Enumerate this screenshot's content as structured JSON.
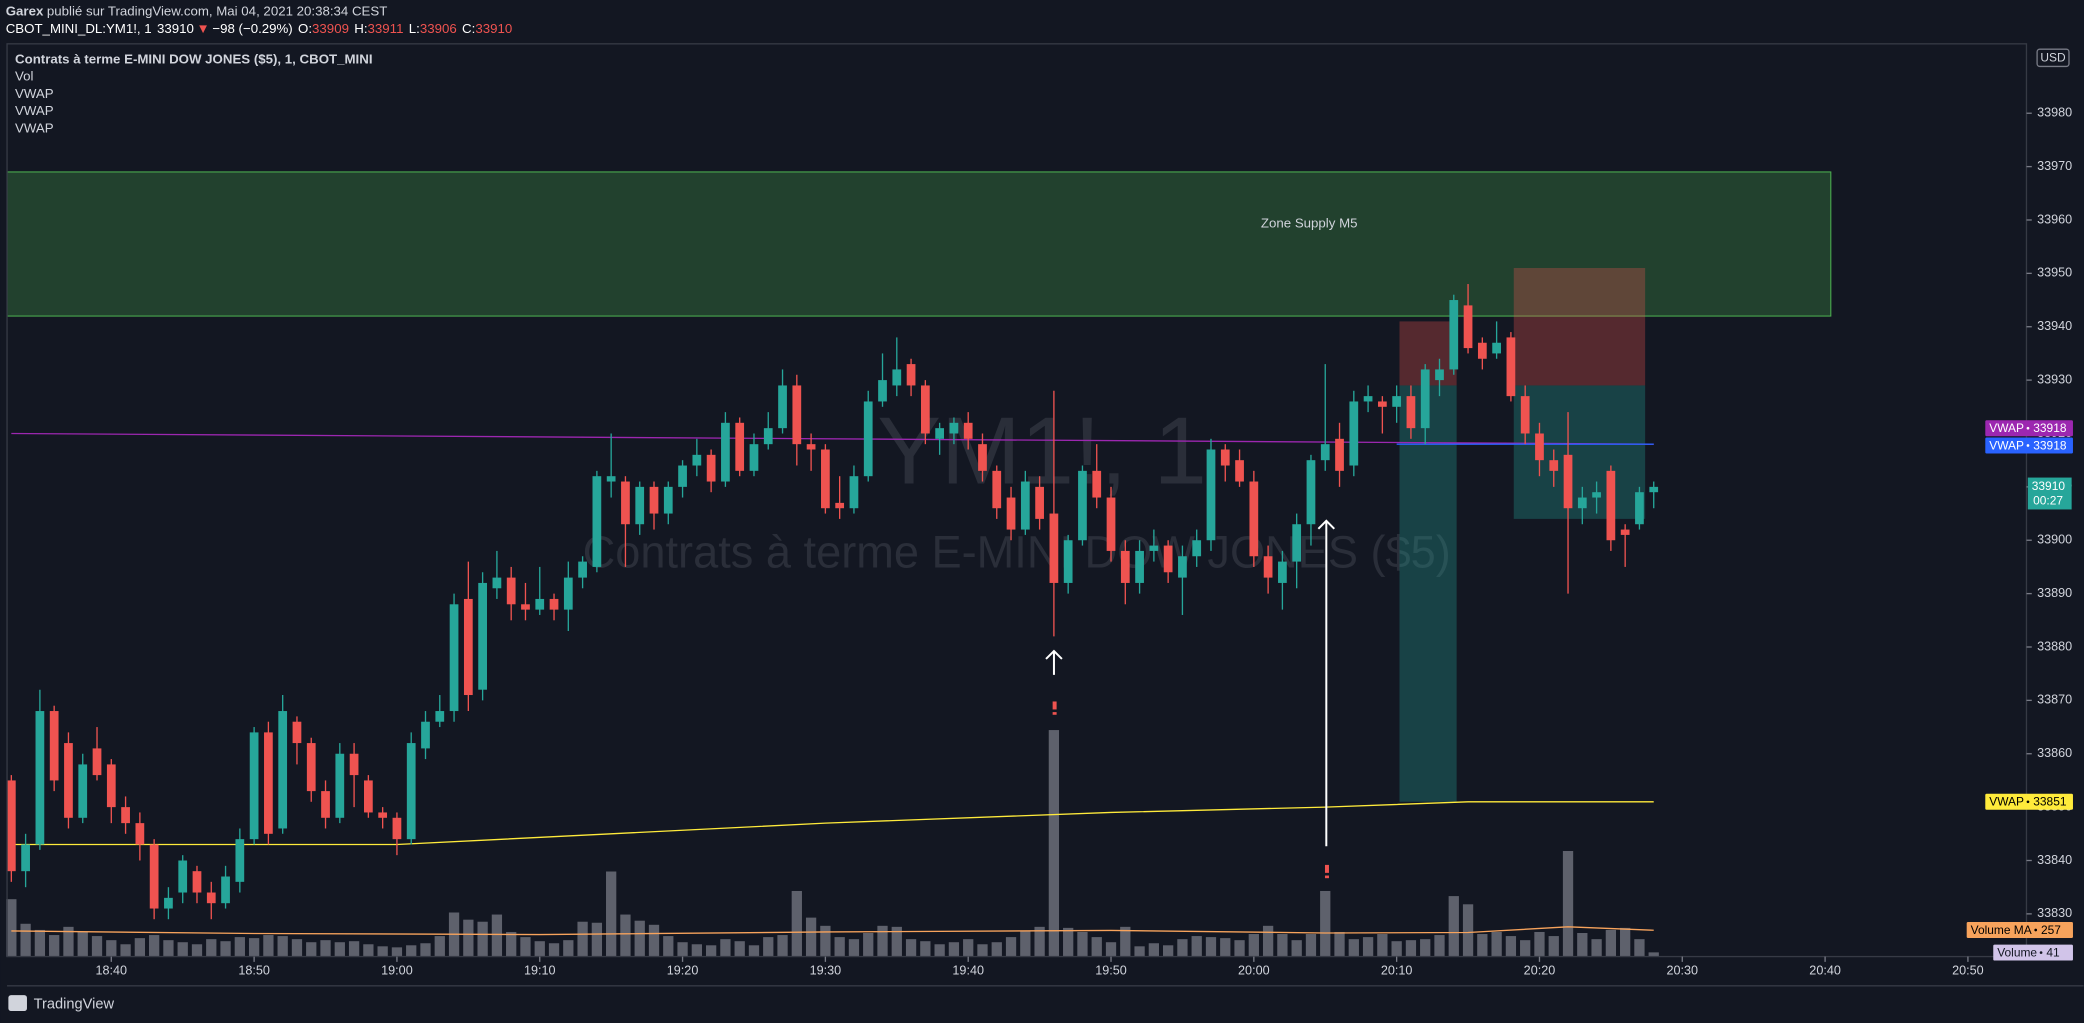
{
  "chart_data": {
    "type": "candlestick",
    "header": {
      "author": "Garex",
      "published": "publié sur TradingView.com, Mai 04, 2021 20:38:34 CEST"
    },
    "quote": {
      "symbol": "CBOT_MINI_DL:YM1!, 1",
      "last": 33910,
      "direction": "▼",
      "change": "−98 (−0.29%)",
      "ohlc": [
        {
          "label": "O:",
          "value": 33909
        },
        {
          "label": "H:",
          "value": 33911
        },
        {
          "label": "L:",
          "value": 33906
        },
        {
          "label": "C:",
          "value": 33910
        }
      ]
    },
    "legend": [
      "Contrats à terme E-MINI DOW JONES ($5), 1, CBOT_MINI",
      "Vol",
      "VWAP",
      "VWAP",
      "VWAP"
    ],
    "watermark": [
      "YM1!, 1",
      "Contrats à terme E-MINI DOW JONES ($5)"
    ],
    "currency": "USD",
    "countdown": "00:27",
    "footer": "TradingView",
    "up_color": "#26a69a",
    "down_color": "#ef5350",
    "xlim": [
      1112.7,
      1254.1
    ],
    "xticks": [
      {
        "value": 1120,
        "label": "18:40"
      },
      {
        "value": 1130,
        "label": "18:50"
      },
      {
        "value": 1140,
        "label": "19:00"
      },
      {
        "value": 1150,
        "label": "19:10"
      },
      {
        "value": 1160,
        "label": "19:20"
      },
      {
        "value": 1170,
        "label": "19:30"
      },
      {
        "value": 1180,
        "label": "19:40"
      },
      {
        "value": 1190,
        "label": "19:50"
      },
      {
        "value": 1200,
        "label": "20:00"
      },
      {
        "value": 1210,
        "label": "20:10"
      },
      {
        "value": 1220,
        "label": "20:20"
      },
      {
        "value": 1230,
        "label": "20:30"
      },
      {
        "value": 1240,
        "label": "20:40"
      },
      {
        "value": 1250,
        "label": "20:50"
      }
    ],
    "ylim": [
      33822,
      33993
    ],
    "yticks": [
      33830,
      33840,
      33850,
      33860,
      33870,
      33880,
      33890,
      33900,
      33910,
      33920,
      33930,
      33940,
      33950,
      33960,
      33970,
      33980
    ],
    "x": [
      1113,
      1114,
      1115,
      1116,
      1117,
      1118,
      1119,
      1120,
      1121,
      1122,
      1123,
      1124,
      1125,
      1126,
      1127,
      1128,
      1129,
      1130,
      1131,
      1132,
      1133,
      1134,
      1135,
      1136,
      1137,
      1138,
      1139,
      1140,
      1141,
      1142,
      1143,
      1144,
      1145,
      1146,
      1147,
      1148,
      1149,
      1150,
      1151,
      1152,
      1153,
      1154,
      1155,
      1156,
      1157,
      1158,
      1159,
      1160,
      1161,
      1162,
      1163,
      1164,
      1165,
      1166,
      1167,
      1168,
      1169,
      1170,
      1171,
      1172,
      1173,
      1174,
      1175,
      1176,
      1177,
      1178,
      1179,
      1180,
      1181,
      1182,
      1183,
      1184,
      1185,
      1186,
      1187,
      1188,
      1189,
      1190,
      1191,
      1192,
      1193,
      1194,
      1195,
      1196,
      1197,
      1198,
      1199,
      1200,
      1201,
      1202,
      1203,
      1204,
      1205,
      1206,
      1207,
      1208,
      1209,
      1210,
      1211,
      1212,
      1213,
      1214,
      1215,
      1216,
      1217,
      1218,
      1219,
      1220,
      1221,
      1222,
      1223,
      1224,
      1225,
      1226,
      1227,
      1228
    ],
    "open": [
      33855,
      33838,
      33843,
      33868,
      33862,
      33848,
      33861,
      33858,
      33850,
      33847,
      33843,
      33831,
      33834,
      33838,
      33834,
      33832,
      33836,
      33844,
      33864,
      33846,
      33866,
      33862,
      33853,
      33848,
      33860,
      33855,
      33849,
      33848,
      33844,
      33861,
      33866,
      33868,
      33889,
      33872,
      33891,
      33893,
      33888,
      33887,
      33889,
      33887,
      33893,
      33895,
      33911,
      33911,
      33903,
      33910,
      33905,
      33910,
      33914,
      33916,
      33911,
      33922,
      33913,
      33918,
      33921,
      33929,
      33918,
      33917,
      33907,
      33906,
      33912,
      33926,
      33929,
      33933,
      33929,
      33919,
      33920,
      33922,
      33918,
      33913,
      33908,
      33902,
      33910,
      33905,
      33892,
      33900,
      33913,
      33908,
      33898,
      33892,
      33898,
      33899,
      33893,
      33897,
      33900,
      33917,
      33915,
      33911,
      33897,
      33892,
      33896,
      33903,
      33915,
      33919,
      33914,
      33926,
      33926,
      33925,
      33927,
      33921,
      33930,
      33932,
      33944,
      33937,
      33935,
      33938,
      33927,
      33920,
      33915,
      33916,
      33906,
      33908,
      33913,
      33902,
      33903,
      33909
    ],
    "high": [
      33856,
      33845,
      33872,
      33869,
      33864,
      33860,
      33865,
      33859,
      33852,
      33849,
      33844,
      33835,
      33841,
      33839,
      33836,
      33839,
      33846,
      33865,
      33866,
      33871,
      33867,
      33863,
      33855,
      33862,
      33862,
      33856,
      33850,
      33849,
      33864,
      33868,
      33871,
      33890,
      33896,
      33894,
      33898,
      33895,
      33892,
      33895,
      33890,
      33896,
      33897,
      33913,
      33920,
      33912,
      33911,
      33911,
      33911,
      33915,
      33919,
      33917,
      33924,
      33923,
      33920,
      33924,
      33932,
      33931,
      33920,
      33918,
      33912,
      33914,
      33928,
      33935,
      33938,
      33934,
      33930,
      33922,
      33923,
      33924,
      33920,
      33914,
      33910,
      33913,
      33912,
      33928,
      33901,
      33914,
      33918,
      33910,
      33900,
      33900,
      33902,
      33900,
      33899,
      33902,
      33919,
      33918,
      33917,
      33913,
      33899,
      33898,
      33905,
      33916,
      33933,
      33922,
      33928,
      33929,
      33927,
      33929,
      33929,
      33933,
      33934,
      33946,
      33948,
      33938,
      33941,
      33939,
      33929,
      33922,
      33917,
      33924,
      33910,
      33911,
      33914,
      33903,
      33910,
      33911
    ],
    "low": [
      33836,
      33835,
      33842,
      33853,
      33846,
      33847,
      33855,
      33847,
      33845,
      33840,
      33829,
      33829,
      33832,
      33832,
      33829,
      33831,
      33834,
      33843,
      33843,
      33845,
      33858,
      33851,
      33846,
      33847,
      33850,
      33848,
      33846,
      33841,
      33843,
      33859,
      33865,
      33866,
      33868,
      33870,
      33889,
      33885,
      33885,
      33886,
      33885,
      33883,
      33891,
      33894,
      33908,
      33895,
      33901,
      33902,
      33903,
      33908,
      33912,
      33909,
      33910,
      33912,
      33912,
      33917,
      33920,
      33914,
      33913,
      33905,
      33904,
      33905,
      33911,
      33925,
      33927,
      33927,
      33918,
      33916,
      33918,
      33917,
      33911,
      33904,
      33900,
      33901,
      33902,
      33882,
      33890,
      33899,
      33906,
      33896,
      33888,
      33890,
      33896,
      33892,
      33886,
      33895,
      33898,
      33911,
      33910,
      33895,
      33890,
      33887,
      33891,
      33899,
      33913,
      33910,
      33912,
      33924,
      33920,
      33922,
      33919,
      33918,
      33927,
      33931,
      33935,
      33932,
      33934,
      33926,
      33918,
      33912,
      33910,
      33890,
      33903,
      33905,
      33898,
      33895,
      33902,
      33906
    ],
    "close": [
      33838,
      33843,
      33868,
      33855,
      33848,
      33858,
      33856,
      33850,
      33847,
      33843,
      33831,
      33833,
      33840,
      33834,
      33832,
      33837,
      33844,
      33864,
      33845,
      33868,
      33862,
      33853,
      33848,
      33860,
      33856,
      33849,
      33848,
      33844,
      33862,
      33866,
      33868,
      33888,
      33871,
      33892,
      33893,
      33888,
      33887,
      33889,
      33887,
      33893,
      33896,
      33912,
      33912,
      33903,
      33910,
      33905,
      33910,
      33914,
      33916,
      33911,
      33922,
      33913,
      33918,
      33921,
      33929,
      33918,
      33917,
      33906,
      33906,
      33912,
      33926,
      33930,
      33932,
      33929,
      33920,
      33921,
      33922,
      33919,
      33913,
      33906,
      33902,
      33911,
      33904,
      33892,
      33900,
      33913,
      33908,
      33898,
      33892,
      33898,
      33899,
      33894,
      33897,
      33900,
      33917,
      33914,
      33911,
      33897,
      33893,
      33896,
      33903,
      33915,
      33918,
      33913,
      33926,
      33927,
      33925,
      33927,
      33921,
      33932,
      33932,
      33945,
      33936,
      33934,
      33937,
      33927,
      33920,
      33915,
      33913,
      33906,
      33908,
      33909,
      33900,
      33901,
      33909,
      33910
    ],
    "volume": {
      "name": "Volume",
      "color": "#787b86",
      "ylim": [
        0,
        2800
      ],
      "values": [
        560,
        320,
        260,
        210,
        290,
        240,
        200,
        160,
        120,
        180,
        210,
        160,
        140,
        120,
        170,
        150,
        190,
        180,
        210,
        200,
        170,
        140,
        160,
        140,
        150,
        120,
        100,
        90,
        110,
        130,
        200,
        430,
        360,
        340,
        410,
        240,
        190,
        150,
        130,
        160,
        340,
        330,
        830,
        410,
        350,
        310,
        200,
        140,
        120,
        110,
        170,
        150,
        110,
        190,
        210,
        640,
        380,
        300,
        190,
        170,
        230,
        300,
        290,
        170,
        150,
        120,
        140,
        170,
        120,
        140,
        190,
        250,
        290,
        2210,
        280,
        240,
        190,
        140,
        290,
        100,
        130,
        110,
        170,
        200,
        190,
        180,
        160,
        220,
        300,
        220,
        160,
        220,
        640,
        240,
        170,
        190,
        220,
        150,
        160,
        170,
        210,
        590,
        510,
        220,
        240,
        200,
        160,
        240,
        200,
        1030,
        230,
        170,
        260,
        280,
        170,
        41
      ]
    },
    "volume_ma": {
      "name": "Volume MA",
      "color": "#f7a35c",
      "x": [
        1113,
        1130,
        1150,
        1170,
        1190,
        1205,
        1215,
        1222,
        1228
      ],
      "values": [
        250,
        225,
        215,
        240,
        255,
        230,
        235,
        290,
        257
      ]
    },
    "vwap": [
      {
        "name": "VWAP",
        "color": "#9c27b0",
        "x": [
          1113,
          1228
        ],
        "values": [
          33920,
          33918
        ]
      },
      {
        "name": "VWAP",
        "color": "#2962ff",
        "x": [
          1210,
          1228
        ],
        "values": [
          33918,
          33918
        ]
      },
      {
        "name": "VWAP",
        "color": "#ffeb3b",
        "x": [
          1113,
          1140,
          1155,
          1170,
          1190,
          1205,
          1215,
          1228
        ],
        "values": [
          33843,
          33843,
          33845,
          33847,
          33849,
          33850,
          33851,
          33851
        ]
      }
    ],
    "zone": {
      "label": "Zone Supply M5",
      "x": [
        1112.7,
        1240.4
      ],
      "top": 33969,
      "bottom": 33942
    },
    "positions": [
      {
        "x": [
          1210.2,
          1214.2
        ],
        "stop": 33941,
        "entry": 33929,
        "target": 33851
      },
      {
        "x": [
          1218.2,
          1227.4
        ],
        "stop": 33951,
        "entry": 33929,
        "target": 33904
      }
    ]
  }
}
